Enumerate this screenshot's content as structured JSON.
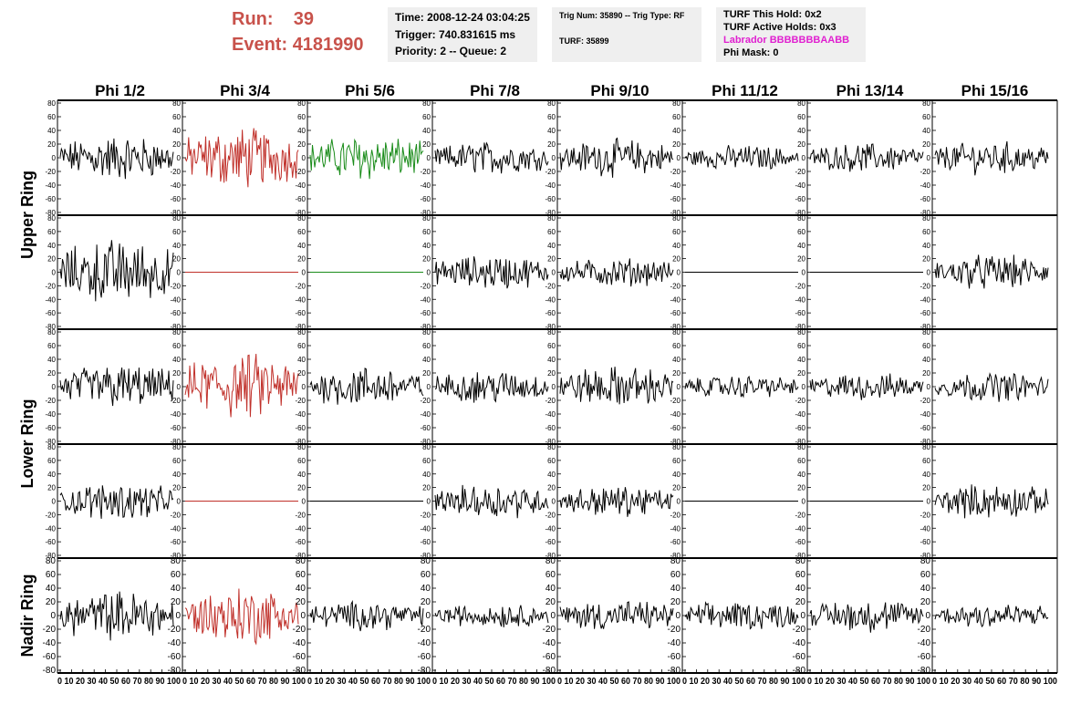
{
  "header": {
    "run_label": "Run:",
    "run_value": "39",
    "event_label": "Event:",
    "event_value": "4181990",
    "box1": {
      "time": "Time: 2008-12-24 03:04:25",
      "trigger": "Trigger: 740.831615 ms",
      "priority": "Priority: 2 -- Queue: 2"
    },
    "box2": {
      "trig": "Trig Num: 35890 -- Trig Type: RF",
      "turf": "TURF: 35899"
    },
    "box3": {
      "hold": "TURF This Hold: 0x2",
      "active": "TURF Active Holds: 0x3",
      "labrador": "Labrador BBBBBBBAABB",
      "phimask": "Phi Mask: 0"
    }
  },
  "colors": {
    "red": "#c0302a",
    "green": "#1a8c1a",
    "black": "#000000",
    "header_red": "#c8524b",
    "labrador_magenta": "#e020d0"
  },
  "chart_data": {
    "type": "line",
    "columns": [
      "Phi 1/2",
      "Phi 3/4",
      "Phi 5/6",
      "Phi 7/8",
      "Phi 9/10",
      "Phi 11/12",
      "Phi 13/14",
      "Phi 15/16"
    ],
    "rows": [
      "Upper Ring",
      "Lower Ring",
      "Nadir Ring"
    ],
    "ylim": [
      -80,
      80
    ],
    "yticks": [
      "80",
      "60",
      "40",
      "20",
      "0",
      "-20",
      "-40",
      "-60",
      "-80"
    ],
    "xlim": [
      0,
      100
    ],
    "xticks": [
      "0",
      "10",
      "20",
      "30",
      "40",
      "50",
      "60",
      "70",
      "80",
      "90",
      "100"
    ],
    "xtick_labels_compact": "0 10 20 30 40 50 60 70 80 90 100",
    "panel_rows": [
      {
        "ring": "Upper Ring",
        "channels": [
          {
            "color": "black",
            "amp": 22
          },
          {
            "color": "red",
            "amp": 30
          },
          {
            "color": "green",
            "amp": 22
          },
          {
            "color": "black",
            "amp": 16
          },
          {
            "color": "black",
            "amp": 18
          },
          {
            "color": "black",
            "amp": 12
          },
          {
            "color": "black",
            "amp": 14
          },
          {
            "color": "black",
            "amp": 16
          }
        ]
      },
      {
        "ring": "Upper Ring",
        "channels": [
          {
            "color": "black",
            "amp": 32
          },
          {
            "color": "red",
            "amp": 0
          },
          {
            "color": "green",
            "amp": 0
          },
          {
            "color": "black",
            "amp": 17
          },
          {
            "color": "black",
            "amp": 14
          },
          {
            "color": "black",
            "amp": 0
          },
          {
            "color": "black",
            "amp": 0
          },
          {
            "color": "black",
            "amp": 17
          }
        ]
      },
      {
        "ring": "Lower Ring",
        "channels": [
          {
            "color": "black",
            "amp": 22
          },
          {
            "color": "red",
            "amp": 32
          },
          {
            "color": "black",
            "amp": 20
          },
          {
            "color": "black",
            "amp": 16
          },
          {
            "color": "black",
            "amp": 20
          },
          {
            "color": "black",
            "amp": 11
          },
          {
            "color": "black",
            "amp": 13
          },
          {
            "color": "black",
            "amp": 14
          }
        ]
      },
      {
        "ring": "Lower Ring",
        "channels": [
          {
            "color": "black",
            "amp": 18
          },
          {
            "color": "red",
            "amp": 0
          },
          {
            "color": "black",
            "amp": 0
          },
          {
            "color": "black",
            "amp": 17
          },
          {
            "color": "black",
            "amp": 15
          },
          {
            "color": "black",
            "amp": 0
          },
          {
            "color": "black",
            "amp": 0
          },
          {
            "color": "black",
            "amp": 17
          }
        ]
      },
      {
        "ring": "Nadir Ring",
        "channels": [
          {
            "color": "black",
            "amp": 24
          },
          {
            "color": "red",
            "amp": 28
          },
          {
            "color": "black",
            "amp": 14
          },
          {
            "color": "black",
            "amp": 12
          },
          {
            "color": "black",
            "amp": 15
          },
          {
            "color": "black",
            "amp": 14
          },
          {
            "color": "black",
            "amp": 16
          },
          {
            "color": "black",
            "amp": 13
          }
        ]
      }
    ]
  }
}
